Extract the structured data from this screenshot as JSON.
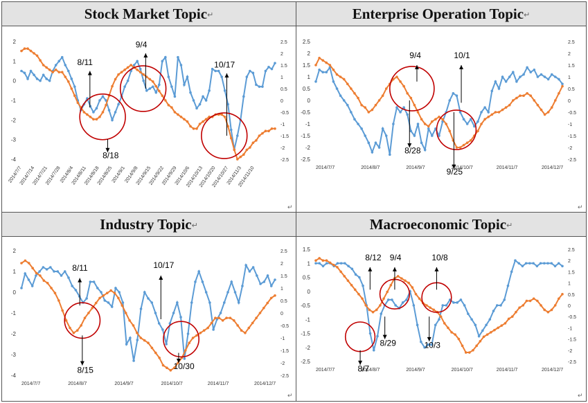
{
  "return_mark": "↵",
  "chart_data": [
    {
      "type": "line",
      "title": "Stock Market Topic",
      "x_labels": [
        "2014/7/7",
        "2014/7/14",
        "2014/7/21",
        "2014/7/28",
        "2014/8/4",
        "2014/8/11",
        "2014/8/18",
        "2014/8/25",
        "2014/9/1",
        "2014/9/8",
        "2014/9/15",
        "2014/9/22",
        "2014/9/29",
        "2014/10/6",
        "2014/10/13",
        "2014/10/20",
        "2014/10/27",
        "2014/11/3",
        "2014/11/10"
      ],
      "y_left": [
        2,
        1,
        0,
        -1,
        -2,
        -3,
        -4
      ],
      "y_right": [
        2.5,
        2,
        1.5,
        1,
        0.5,
        0,
        -0.5,
        -1,
        -1.5,
        -2,
        -2.5
      ],
      "series": [
        {
          "axis": "left",
          "color": "#5b9bd5",
          "values": [
            0.5,
            0.4,
            0.1,
            0.5,
            0.3,
            0.1,
            0,
            0.3,
            0.1,
            0,
            0.5,
            0.8,
            1,
            1.2,
            0.8,
            0.5,
            0.1,
            -0.3,
            -1,
            -1.5,
            -1.2,
            -0.9,
            -1.3,
            -1.6,
            -1.4,
            -1,
            -0.8,
            -1,
            -1.5,
            -2,
            -1.6,
            -1.2,
            -0.8,
            -0.3,
            0,
            0.5,
            0.8,
            1,
            0.6,
            0,
            -0.5,
            -0.4,
            -0.3,
            -0.6,
            -0.2,
            1,
            1.2,
            0.2,
            -0.3,
            -0.8,
            1.2,
            0.8,
            -0.2,
            0.2,
            -0.6,
            -1,
            -1.4,
            -1.2,
            -0.8,
            -1,
            -0.5,
            0.6,
            0.5,
            0.5,
            0.2,
            -0.5,
            -1.2,
            -2.5,
            -3.5,
            -2.8,
            -2,
            -0.8,
            0.2,
            0.5,
            0.4,
            -0.2,
            -0.3,
            -0.3,
            0.5,
            0.7,
            0.6,
            0.9
          ]
        },
        {
          "axis": "right",
          "color": "#ed7d31",
          "values": [
            2.1,
            2.2,
            2.2,
            2.1,
            2,
            1.9,
            1.7,
            1.5,
            1.4,
            1.3,
            1.2,
            1.3,
            1.2,
            1.2,
            1,
            0.8,
            0.5,
            0.2,
            -0.1,
            -0.3,
            -0.5,
            -0.6,
            -0.7,
            -0.8,
            -0.8,
            -0.7,
            -0.5,
            -0.2,
            0.2,
            0.6,
            0.9,
            1.1,
            1.2,
            1.3,
            1.4,
            1.5,
            1.4,
            1.3,
            1.2,
            1.1,
            1,
            0.9,
            0.8,
            0.6,
            0.4,
            0.2,
            0,
            -0.2,
            -0.3,
            -0.5,
            -0.6,
            -0.7,
            -0.8,
            -0.9,
            -1.1,
            -1.2,
            -1.2,
            -1,
            -0.9,
            -0.8,
            -0.7,
            -0.7,
            -0.6,
            -0.6,
            -0.6,
            -0.7,
            -1.1,
            -1.6,
            -2.1,
            -2.5,
            -2.4,
            -2.3,
            -2.1,
            -2,
            -1.8,
            -1.7,
            -1.5,
            -1.4,
            -1.3,
            -1.3,
            -1.2,
            -1.2
          ]
        }
      ],
      "annotations": [
        {
          "label": "8/11",
          "fx": 0.27,
          "fy": 0.56,
          "tx": 0.27,
          "ty": 0.25,
          "lx": 0.22,
          "ly": 0.2
        },
        {
          "label": "9/4",
          "fx": 0.49,
          "fy": 0.4,
          "tx": 0.49,
          "ty": 0.1,
          "lx": 0.45,
          "ly": 0.05
        },
        {
          "label": "8/18",
          "fx": 0.34,
          "fy": 0.83,
          "tx": 0.34,
          "ty": 0.94,
          "lx": 0.32,
          "ly": 0.99
        },
        {
          "label": "10/17",
          "fx": 0.81,
          "fy": 0.8,
          "tx": 0.81,
          "ty": 0.27,
          "lx": 0.76,
          "ly": 0.22
        }
      ],
      "circles": [
        {
          "cx": 0.32,
          "cy": 0.64,
          "r": 0.09
        },
        {
          "cx": 0.48,
          "cy": 0.4,
          "r": 0.09
        },
        {
          "cx": 0.8,
          "cy": 0.8,
          "r": 0.09
        }
      ]
    },
    {
      "type": "line",
      "title": "Enterprise Operation Topic",
      "x_labels": [
        "2014/7/7",
        "2014/8/7",
        "2014/9/7",
        "2014/10/7",
        "2014/11/7",
        "2014/12/7"
      ],
      "y_left": [
        2.5,
        2,
        1.5,
        1,
        0.5,
        0,
        -0.5,
        -1,
        -1.5,
        -2,
        -2.5
      ],
      "y_right": [
        2.5,
        2,
        1.5,
        1,
        0.5,
        0,
        -0.5,
        -1,
        -1.5,
        -2,
        -2.5
      ],
      "series": [
        {
          "axis": "left",
          "color": "#5b9bd5",
          "values": [
            0.8,
            1.3,
            1.2,
            1.2,
            1.4,
            0.8,
            0.5,
            0.2,
            0,
            -0.2,
            -0.5,
            -0.8,
            -1,
            -1.2,
            -1.5,
            -1.8,
            -2.2,
            -1.8,
            -2,
            -1.2,
            -1.5,
            -2.3,
            -1,
            -0.3,
            -0.5,
            -0.3,
            -0.6,
            -1.3,
            -1.5,
            -1,
            -1.8,
            -2.1,
            -1.2,
            -1.5,
            -1.2,
            -1.5,
            -0.9,
            -0.5,
            0,
            0.3,
            0.2,
            -0.5,
            -0.8,
            -1,
            -0.8,
            -1.1,
            -0.9,
            -0.5,
            -0.3,
            -0.5,
            0.4,
            0.8,
            0.5,
            1,
            0.8,
            1,
            1.2,
            0.8,
            1,
            1.1,
            1.4,
            1.2,
            1.3,
            1,
            1.1,
            1,
            0.9,
            1.1,
            1,
            0.9,
            0.7
          ]
        },
        {
          "axis": "right",
          "color": "#ed7d31",
          "values": [
            1.5,
            1.8,
            1.7,
            1.6,
            1.5,
            1.3,
            1.1,
            1,
            0.9,
            0.7,
            0.5,
            0.3,
            0.1,
            -0.2,
            -0.3,
            -0.5,
            -0.4,
            -0.2,
            0,
            0.2,
            0.5,
            0.7,
            0.9,
            1,
            0.8,
            0.6,
            0.3,
            0.1,
            -0.2,
            -0.5,
            -0.8,
            -1,
            -1.1,
            -0.9,
            -0.8,
            -0.7,
            -0.8,
            -1,
            -1.3,
            -1.7,
            -2,
            -2,
            -1.9,
            -1.8,
            -1.7,
            -1.5,
            -1.3,
            -1,
            -0.8,
            -0.7,
            -0.6,
            -0.5,
            -0.5,
            -0.4,
            -0.3,
            -0.2,
            0,
            0.1,
            0.2,
            0.2,
            0.3,
            0.2,
            0,
            -0.2,
            -0.4,
            -0.6,
            -0.5,
            -0.3,
            0,
            0.3,
            0.6
          ]
        }
      ],
      "annotations": [
        {
          "label": "9/4",
          "fx": 0.41,
          "fy": 0.34,
          "tx": 0.41,
          "ty": 0.2,
          "lx": 0.38,
          "ly": 0.14
        },
        {
          "label": "10/1",
          "fx": 0.59,
          "fy": 0.52,
          "tx": 0.59,
          "ty": 0.2,
          "lx": 0.56,
          "ly": 0.14
        },
        {
          "label": "8/28",
          "fx": 0.38,
          "fy": 0.5,
          "tx": 0.38,
          "ty": 0.9,
          "lx": 0.36,
          "ly": 0.95
        },
        {
          "label": "9/25",
          "fx": 0.56,
          "fy": 0.6,
          "tx": 0.56,
          "ty": 1.08,
          "lx": 0.53,
          "ly": 1.13
        }
      ],
      "circles": [
        {
          "cx": 0.39,
          "cy": 0.4,
          "r": 0.09
        },
        {
          "cx": 0.57,
          "cy": 0.75,
          "r": 0.08
        }
      ]
    },
    {
      "type": "line",
      "title": "Industry Topic",
      "x_labels": [
        "2014/7/7",
        "2014/8/7",
        "2014/9/7",
        "2014/10/7",
        "2014/11/7",
        "2014/12/7"
      ],
      "y_left": [
        2,
        1,
        0,
        -1,
        -2,
        -3,
        -4
      ],
      "y_right": [
        2.5,
        2,
        1.5,
        1,
        0.5,
        0,
        -0.5,
        -1,
        -1.5,
        -2,
        -2.5
      ],
      "series": [
        {
          "axis": "left",
          "color": "#5b9bd5",
          "values": [
            0.2,
            0.9,
            0.6,
            0.3,
            0.8,
            1,
            1.2,
            1.1,
            1.2,
            1,
            1,
            0.8,
            1,
            0.7,
            0.3,
            0.1,
            -0.2,
            -0.5,
            -0.3,
            0.5,
            0.5,
            0.2,
            0,
            -0.4,
            -0.5,
            -0.7,
            0.2,
            0,
            -0.5,
            -2.5,
            -2.2,
            -3.3,
            -2.3,
            -0.8,
            0,
            -0.3,
            -0.5,
            -1,
            -1.5,
            -1.8,
            -2.5,
            -1.5,
            -1,
            -0.5,
            -1.2,
            -3.2,
            -2,
            -0.5,
            0.5,
            1,
            0.5,
            0,
            -0.5,
            -1.8,
            -1.3,
            -1,
            -0.5,
            0,
            0.5,
            0,
            -0.5,
            0.3,
            1.3,
            1,
            1.2,
            0.8,
            0.4,
            0.5,
            0.8,
            0.3,
            0.6
          ]
        },
        {
          "axis": "right",
          "color": "#ed7d31",
          "values": [
            2,
            2.1,
            2,
            1.8,
            1.6,
            1.5,
            1.3,
            1.2,
            1,
            0.8,
            0.5,
            0.1,
            -0.3,
            -0.6,
            -0.8,
            -0.7,
            -0.5,
            -0.2,
            0,
            0.2,
            0.4,
            0.6,
            0.7,
            0.8,
            0.9,
            0.8,
            0.6,
            0.3,
            0,
            -0.3,
            -0.5,
            -0.8,
            -1,
            -1.1,
            -1.2,
            -1.4,
            -1.6,
            -1.8,
            -2.1,
            -2.2,
            -2.3,
            -2.2,
            -2,
            -1.8,
            -1.5,
            -1.2,
            -1,
            -0.9,
            -0.8,
            -0.7,
            -0.6,
            -0.4,
            -0.2,
            -0.2,
            -0.3,
            -0.2,
            -0.2,
            -0.3,
            -0.5,
            -0.7,
            -0.8,
            -0.6,
            -0.4,
            -0.2,
            0,
            0.2,
            0.4,
            0.6,
            0.7
          ]
        }
      ],
      "annotations": [
        {
          "label": "8/11",
          "fx": 0.23,
          "fy": 0.44,
          "tx": 0.23,
          "ty": 0.22,
          "lx": 0.2,
          "ly": 0.16
        },
        {
          "label": "10/17",
          "fx": 0.55,
          "fy": 0.55,
          "tx": 0.55,
          "ty": 0.2,
          "lx": 0.52,
          "ly": 0.14
        },
        {
          "label": "8/15",
          "fx": 0.24,
          "fy": 0.68,
          "tx": 0.24,
          "ty": 0.92,
          "lx": 0.22,
          "ly": 0.98
        },
        {
          "label": "10/30",
          "fx": 0.62,
          "fy": 0.82,
          "tx": 0.62,
          "ty": 0.9,
          "lx": 0.6,
          "ly": 0.95
        }
      ],
      "circles": [
        {
          "cx": 0.24,
          "cy": 0.56,
          "r": 0.07
        },
        {
          "cx": 0.63,
          "cy": 0.71,
          "r": 0.07
        }
      ]
    },
    {
      "type": "line",
      "title": "Macroeconomic Topic",
      "x_labels": [
        "2014/7/7",
        "2014/8/7",
        "2014/9/7",
        "2014/10/7",
        "2014/11/7",
        "2014/12/7"
      ],
      "y_left": [
        1.5,
        1,
        0.5,
        0,
        -0.5,
        -1,
        -1.5,
        -2,
        -2.5
      ],
      "y_right": [
        2.5,
        2,
        1.5,
        1,
        0.5,
        0,
        -0.5,
        -1,
        -1.5,
        -2,
        -2.5
      ],
      "series": [
        {
          "axis": "left",
          "color": "#5b9bd5",
          "values": [
            1,
            1,
            0.9,
            1,
            1,
            0.9,
            1,
            1,
            1,
            0.9,
            0.8,
            0.6,
            0.5,
            0.2,
            -0.5,
            -1.5,
            -2.1,
            -1.6,
            -0.8,
            -0.5,
            -0.3,
            -0.3,
            -0.5,
            -0.6,
            -0.4,
            -0.3,
            0,
            -0.5,
            -1.2,
            -1.8,
            -2,
            -1.9,
            -1.9,
            -1.2,
            -1,
            -0.5,
            -0.5,
            -0.3,
            -0.4,
            -0.4,
            -0.3,
            -0.5,
            -0.8,
            -1,
            -1.2,
            -1.6,
            -1.4,
            -1.2,
            -1,
            -0.7,
            -0.5,
            -0.5,
            -0.3,
            0.2,
            0.7,
            1.1,
            1,
            0.9,
            1,
            1,
            1,
            0.9,
            1,
            1,
            1,
            1,
            0.9,
            1,
            0.9
          ]
        },
        {
          "axis": "right",
          "color": "#ed7d31",
          "values": [
            2,
            2.1,
            2,
            2,
            1.9,
            1.8,
            1.7,
            1.5,
            1.3,
            1.1,
            0.9,
            0.7,
            0.5,
            0.3,
            0,
            -0.2,
            -0.3,
            -0.2,
            0,
            0.3,
            0.6,
            0.9,
            1.2,
            1.3,
            1.2,
            1.1,
            1,
            0.8,
            0.5,
            0.3,
            0.1,
            0,
            -0.1,
            -0.2,
            -0.3,
            -0.5,
            -0.8,
            -1,
            -1.2,
            -1.3,
            -1.5,
            -1.8,
            -2.1,
            -2.1,
            -2,
            -1.8,
            -1.6,
            -1.4,
            -1.3,
            -1.2,
            -1.1,
            -1,
            -0.9,
            -0.8,
            -0.6,
            -0.5,
            -0.3,
            -0.1,
            0,
            0.2,
            0.2,
            0.3,
            0.2,
            0,
            -0.2,
            -0.3,
            -0.2,
            0,
            0.3,
            0.5
          ]
        }
      ],
      "annotations": [
        {
          "label": "8/12",
          "fx": 0.22,
          "fy": 0.36,
          "tx": 0.22,
          "ty": 0.16,
          "lx": 0.2,
          "ly": 0.1
        },
        {
          "label": "9/4",
          "fx": 0.32,
          "fy": 0.36,
          "tx": 0.32,
          "ty": 0.16,
          "lx": 0.3,
          "ly": 0.1
        },
        {
          "label": "10/8",
          "fx": 0.49,
          "fy": 0.36,
          "tx": 0.49,
          "ty": 0.16,
          "lx": 0.47,
          "ly": 0.1
        },
        {
          "label": "8/29",
          "fx": 0.28,
          "fy": 0.6,
          "tx": 0.28,
          "ty": 0.8,
          "lx": 0.26,
          "ly": 0.86
        },
        {
          "label": "10/3",
          "fx": 0.46,
          "fy": 0.6,
          "tx": 0.46,
          "ty": 0.82,
          "lx": 0.44,
          "ly": 0.88
        },
        {
          "label": "8/7",
          "fx": 0.18,
          "fy": 0.9,
          "tx": 0.18,
          "ty": 1.03,
          "lx": 0.17,
          "ly": 1.09
        }
      ],
      "circles": [
        {
          "cx": 0.18,
          "cy": 0.78,
          "r": 0.06
        },
        {
          "cx": 0.32,
          "cy": 0.4,
          "r": 0.06
        },
        {
          "cx": 0.49,
          "cy": 0.43,
          "r": 0.06
        }
      ]
    }
  ]
}
